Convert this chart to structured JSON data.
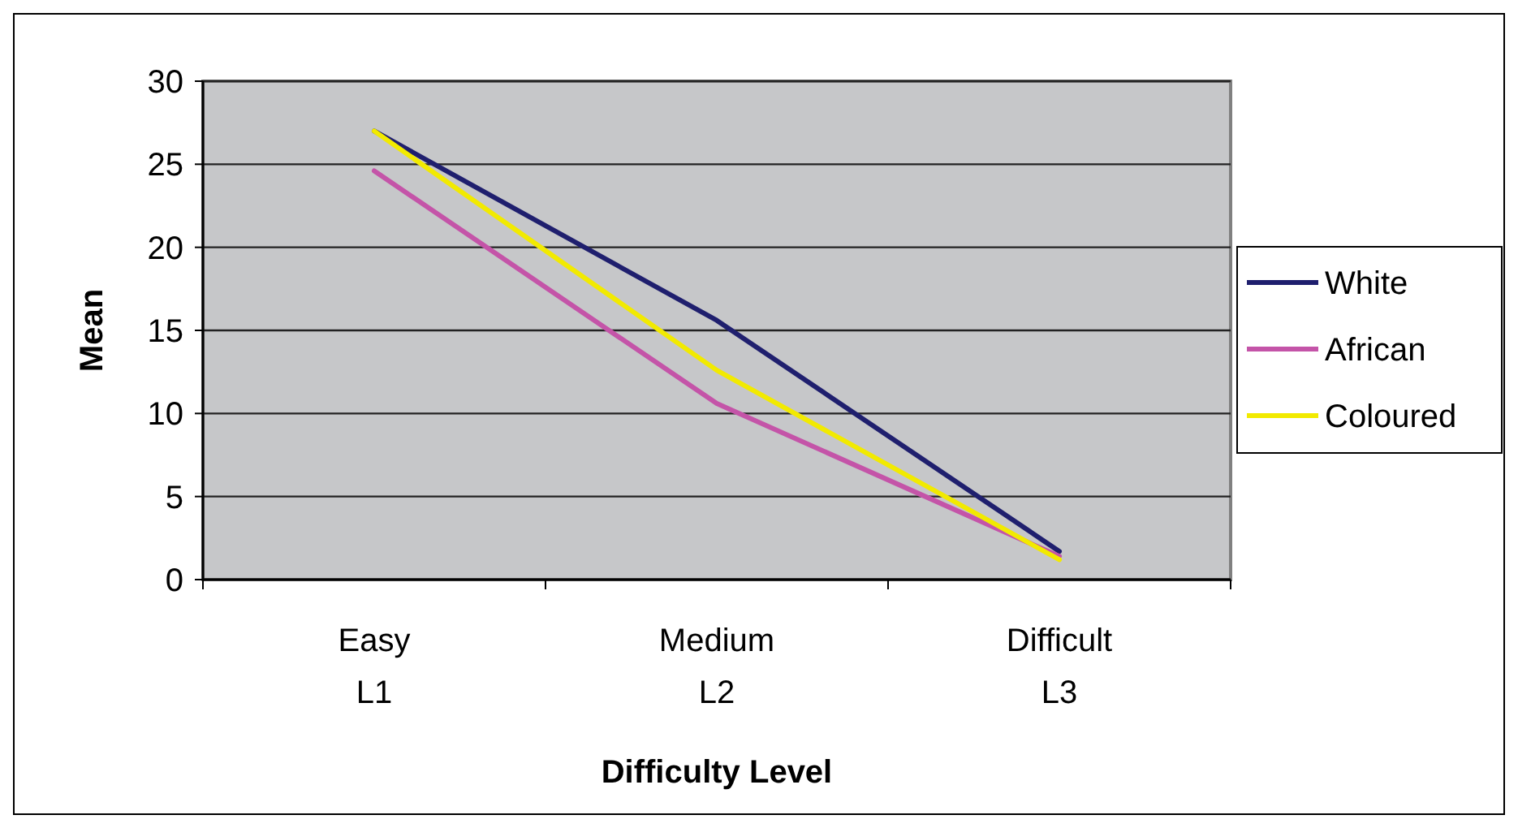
{
  "chart_data": {
    "type": "line",
    "xlabel": "Difficulty Level",
    "ylabel": "Mean",
    "categories": [
      "Easy\nL1",
      "Medium\nL2",
      "Difficult\nL3"
    ],
    "series": [
      {
        "name": "White",
        "color": "#1f1f6e",
        "values": [
          27.0,
          15.6,
          1.7
        ]
      },
      {
        "name": "African",
        "color": "#c454a8",
        "values": [
          24.6,
          10.6,
          1.4
        ]
      },
      {
        "name": "Coloured",
        "color": "#f2ea00",
        "values": [
          27.0,
          12.6,
          1.2
        ]
      }
    ],
    "ylim": [
      0,
      30
    ],
    "yticks": [
      0,
      5,
      10,
      15,
      20,
      25,
      30
    ],
    "grid": "y",
    "legend": "right",
    "marker": "none",
    "line_style": "solid"
  }
}
